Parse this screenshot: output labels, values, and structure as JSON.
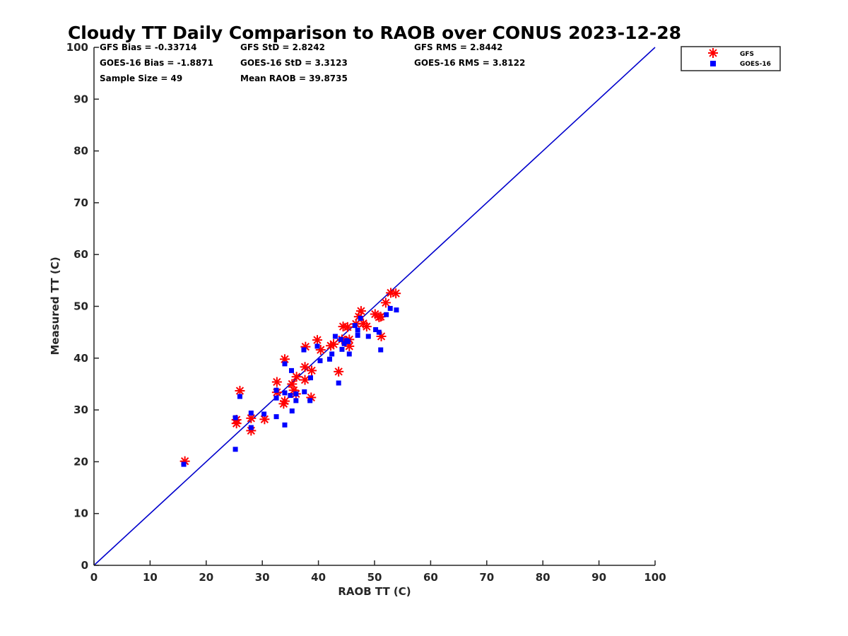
{
  "chart_data": {
    "type": "scatter",
    "title": "Cloudy TT Daily Comparison to RAOB over CONUS 2023-12-28",
    "xlabel": "RAOB TT (C)",
    "ylabel": "Measured TT (C)",
    "xlim": [
      0,
      100
    ],
    "ylim": [
      0,
      100
    ],
    "xticks": [
      "0",
      "10",
      "20",
      "30",
      "40",
      "50",
      "60",
      "70",
      "80",
      "90",
      "100"
    ],
    "yticks": [
      "0",
      "10",
      "20",
      "30",
      "40",
      "50",
      "60",
      "70",
      "80",
      "90",
      "100"
    ],
    "grid": false,
    "legend_position": "top-right (outside plot)",
    "reference_line": {
      "type": "one-to-one",
      "color": "#0000cc"
    },
    "stats": {
      "gfs_bias": "GFS Bias = -0.33714",
      "gfs_std": "GFS StD = 2.8242",
      "gfs_rms": "GFS RMS = 2.8442",
      "goes_bias": "GOES-16 Bias = -1.8871",
      "goes_std": "GOES-16 StD = 3.3123",
      "goes_rms": "GOES-16 RMS = 3.8122",
      "sample_size": "Sample Size = 49",
      "mean_raob": "Mean RAOB = 39.8735"
    },
    "series": [
      {
        "name": "GFS",
        "marker": "asterisk",
        "color": "#ff0000",
        "x": [
          16.2,
          25.4,
          25.4,
          26.0,
          28.0,
          28.0,
          30.4,
          32.6,
          32.6,
          33.8,
          34.0,
          34.0,
          35.3,
          35.6,
          36.0,
          36.1,
          37.6,
          37.6,
          37.7,
          38.7,
          38.8,
          39.8,
          40.4,
          42.2,
          42.7,
          43.6,
          44.2,
          44.4,
          44.9,
          45.2,
          45.5,
          45.5,
          46.7,
          47.2,
          47.6,
          48.0,
          48.6,
          50.1,
          50.8,
          51.1,
          51.2,
          52.0,
          52.9,
          53.8
        ],
        "y": [
          20.1,
          27.4,
          28.1,
          33.7,
          26.0,
          28.4,
          28.2,
          33.4,
          35.4,
          31.2,
          31.7,
          39.8,
          35.0,
          33.8,
          33.1,
          36.4,
          35.8,
          38.3,
          42.2,
          32.4,
          37.6,
          43.5,
          41.6,
          42.4,
          42.7,
          37.4,
          43.6,
          46.1,
          43.2,
          46.0,
          42.3,
          43.6,
          46.6,
          48.0,
          49.1,
          46.7,
          46.1,
          48.5,
          47.9,
          48.0,
          44.2,
          50.7,
          52.6,
          52.5
        ]
      },
      {
        "name": "GOES-16",
        "marker": "square",
        "color": "#0000ff",
        "x": [
          16.0,
          25.2,
          25.2,
          26.0,
          28.0,
          28.0,
          30.3,
          32.5,
          32.5,
          32.5,
          34.0,
          34.0,
          34.0,
          35.0,
          35.2,
          35.3,
          36.0,
          36.0,
          37.4,
          37.5,
          38.5,
          38.6,
          39.8,
          40.3,
          42.0,
          42.4,
          43.0,
          43.6,
          44.0,
          44.2,
          44.6,
          45.0,
          45.3,
          45.5,
          46.5,
          47.0,
          47.0,
          47.5,
          48.9,
          50.2,
          50.8,
          51.1,
          52.1,
          52.8,
          53.9
        ],
        "y": [
          19.5,
          22.4,
          28.5,
          32.6,
          26.6,
          29.4,
          29.2,
          28.7,
          32.3,
          33.8,
          27.1,
          33.3,
          38.9,
          32.8,
          37.6,
          29.8,
          31.8,
          33.1,
          41.6,
          33.5,
          31.8,
          36.2,
          42.3,
          39.5,
          39.8,
          40.8,
          44.2,
          35.2,
          43.6,
          41.7,
          42.8,
          43.4,
          43.2,
          40.8,
          46.3,
          44.4,
          45.4,
          47.7,
          44.2,
          45.5,
          45.0,
          41.6,
          48.4,
          49.6,
          49.3
        ]
      }
    ]
  }
}
